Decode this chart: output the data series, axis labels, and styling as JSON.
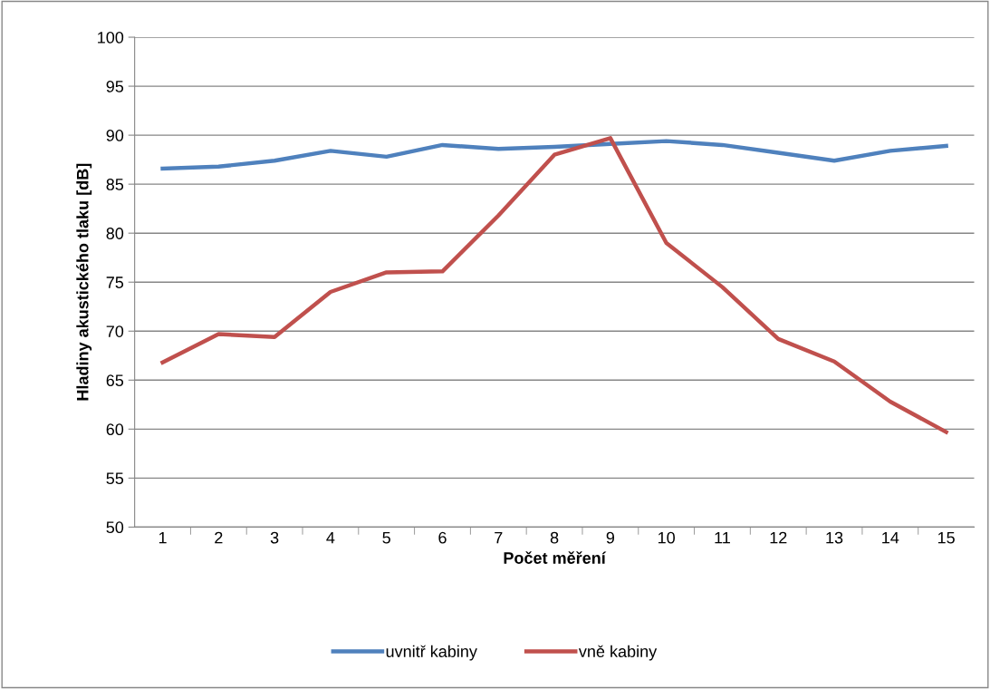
{
  "chart_data": {
    "type": "line",
    "xlabel": "Počet měření",
    "ylabel": "Hladiny akustického tlaku [dB]",
    "categories": [
      "1",
      "2",
      "3",
      "4",
      "5",
      "6",
      "7",
      "8",
      "9",
      "10",
      "11",
      "12",
      "13",
      "14",
      "15"
    ],
    "series": [
      {
        "name": "uvnitř kabiny",
        "color": "#4f81bd",
        "values": [
          86.6,
          86.8,
          87.4,
          88.4,
          87.8,
          89.0,
          88.6,
          88.8,
          89.1,
          89.4,
          89.0,
          88.2,
          87.4,
          88.4,
          88.9
        ]
      },
      {
        "name": "vně kabiny",
        "color": "#c0504d",
        "values": [
          66.8,
          69.7,
          69.4,
          74.0,
          76.0,
          76.1,
          81.8,
          88.0,
          89.7,
          79.0,
          74.5,
          69.2,
          66.9,
          62.8,
          59.7
        ]
      }
    ],
    "ylim": [
      50,
      100
    ],
    "yticks": [
      50,
      55,
      60,
      65,
      70,
      75,
      80,
      85,
      90,
      95,
      100
    ],
    "grid": "y",
    "legend": "bottom",
    "marker": "none",
    "line_style": "solid"
  }
}
